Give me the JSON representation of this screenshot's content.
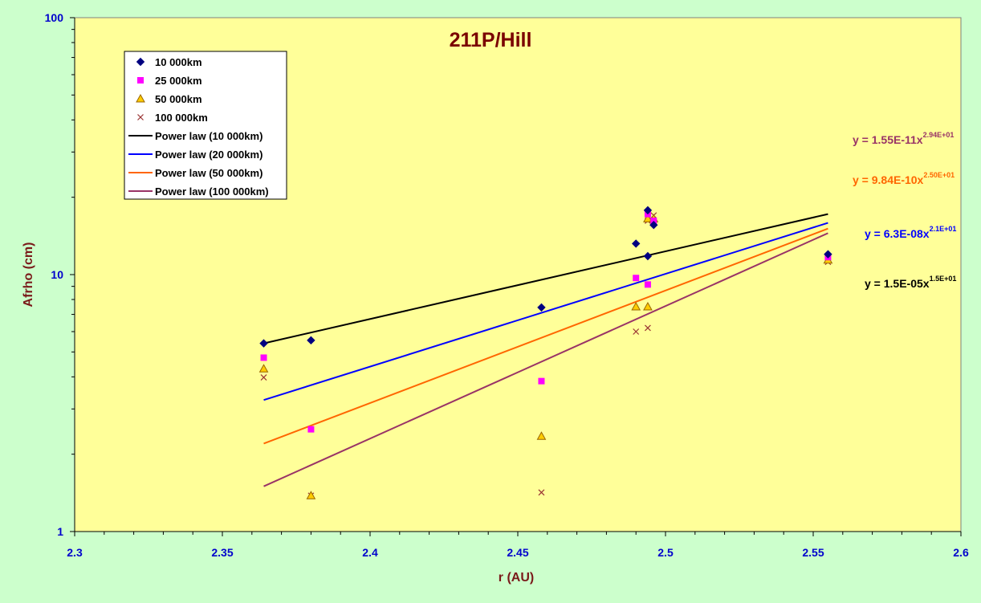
{
  "chart_data": {
    "type": "scatter",
    "title": "211P/Hill",
    "xlabel": "r (AU)",
    "ylabel": "Afrho (cm)",
    "xlim": [
      2.3,
      2.6
    ],
    "ylim": [
      1,
      100
    ],
    "yscale": "log",
    "grid": "none",
    "legend_position": "top-left",
    "x_tick_labels": [
      "2.3",
      "2.35",
      "2.4",
      "2.45",
      "2.5",
      "2.55",
      "2.6"
    ],
    "y_tick_labels": [
      "1",
      "10",
      "100"
    ],
    "series": [
      {
        "name": "10 000km",
        "marker": "diamond",
        "color": "#000080",
        "points": [
          [
            2.364,
            5.4
          ],
          [
            2.38,
            5.55
          ],
          [
            2.458,
            7.45
          ],
          [
            2.49,
            13.2
          ],
          [
            2.494,
            17.8
          ],
          [
            2.494,
            11.8
          ],
          [
            2.496,
            15.6
          ],
          [
            2.555,
            12.0
          ]
        ]
      },
      {
        "name": "25 000km",
        "marker": "square",
        "color": "#ff00ff",
        "points": [
          [
            2.364,
            4.75
          ],
          [
            2.38,
            2.5
          ],
          [
            2.458,
            3.85
          ],
          [
            2.49,
            9.7
          ],
          [
            2.494,
            9.15
          ],
          [
            2.494,
            17.2
          ],
          [
            2.496,
            16.2
          ],
          [
            2.555,
            11.7
          ]
        ]
      },
      {
        "name": "50 000km",
        "marker": "triangle",
        "color": "#ffcc00",
        "points": [
          [
            2.364,
            4.3
          ],
          [
            2.38,
            1.38
          ],
          [
            2.458,
            2.35
          ],
          [
            2.49,
            7.5
          ],
          [
            2.494,
            7.5
          ],
          [
            2.494,
            16.5
          ],
          [
            2.496,
            16.5
          ],
          [
            2.555,
            11.4
          ]
        ]
      },
      {
        "name": "100 000km",
        "marker": "x",
        "color": "#993333",
        "points": [
          [
            2.364,
            3.98
          ],
          [
            2.38,
            1.38
          ],
          [
            2.458,
            1.42
          ],
          [
            2.49,
            6.0
          ],
          [
            2.494,
            6.2
          ],
          [
            2.494,
            16.2
          ],
          [
            2.496,
            17.0
          ],
          [
            2.555,
            11.2
          ]
        ]
      }
    ],
    "trendlines": [
      {
        "name": "Power law (10 000km)",
        "color": "#000000",
        "x": [
          2.364,
          2.555
        ],
        "y": [
          5.4,
          17.2
        ]
      },
      {
        "name": "Power law (20 000km)",
        "color": "#0000ff",
        "x": [
          2.364,
          2.555
        ],
        "y": [
          3.25,
          15.9
        ]
      },
      {
        "name": "Power law (50 000km)",
        "color": "#ff6600",
        "x": [
          2.364,
          2.555
        ],
        "y": [
          2.2,
          15.1
        ]
      },
      {
        "name": "Power law (100 000km)",
        "color": "#993366",
        "x": [
          2.364,
          2.555
        ],
        "y": [
          1.5,
          14.5
        ]
      }
    ],
    "equations": [
      {
        "base": "y = 1.55E-11x",
        "exp": "2.94E+01",
        "color": "#993366"
      },
      {
        "base": "y = 9.84E-10x",
        "exp": "2.50E+01",
        "color": "#ff6600"
      },
      {
        "base": "y = 6.3E-08x",
        "exp": "2.1E+01",
        "color": "#0000ff"
      },
      {
        "base": "y = 1.5E-05x",
        "exp": "1.5E+01",
        "color": "#000000"
      }
    ],
    "colors": {
      "background": "#ccffcc",
      "plot_area": "#ffff99"
    }
  }
}
